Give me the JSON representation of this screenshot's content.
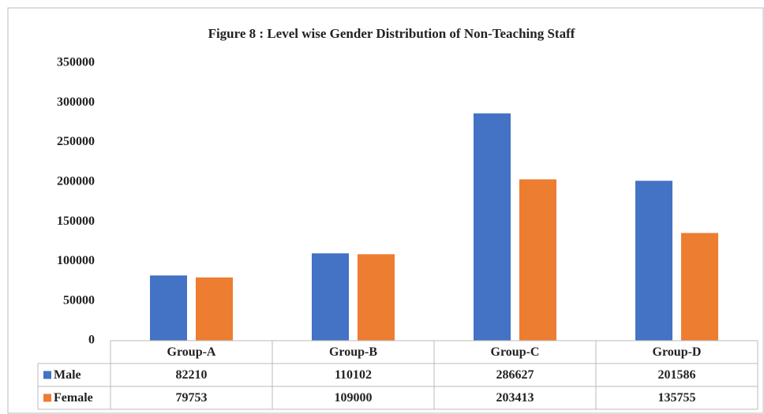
{
  "chart_data": {
    "type": "bar",
    "title": "Figure 8 : Level wise Gender Distribution of Non-Teaching Staff",
    "categories": [
      "Group-A",
      "Group-B",
      "Group-C",
      "Group-D"
    ],
    "series": [
      {
        "name": "Male",
        "color": "#4472c4",
        "values": [
          82210,
          110102,
          286627,
          201586
        ]
      },
      {
        "name": "Female",
        "color": "#ed7d31",
        "values": [
          79753,
          109000,
          203413,
          135755
        ]
      }
    ],
    "ylim": [
      0,
      350000
    ],
    "yticks": [
      0,
      50000,
      100000,
      150000,
      200000,
      250000,
      300000,
      350000
    ],
    "grid": false,
    "data_table": true
  }
}
